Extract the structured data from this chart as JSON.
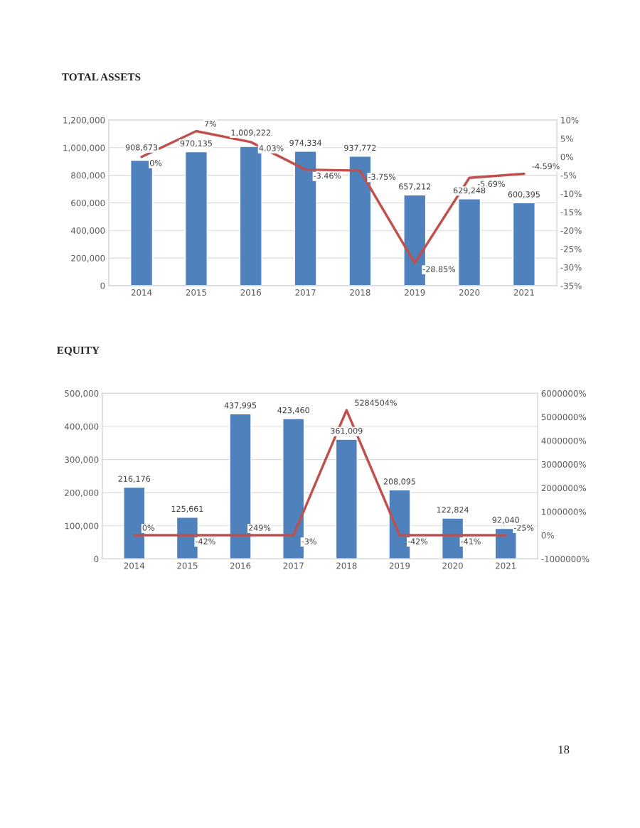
{
  "chart_data": [
    {
      "type": "bar",
      "title": "TOTAL ASSETS",
      "categories": [
        "2014",
        "2015",
        "2016",
        "2017",
        "2018",
        "2019",
        "2020",
        "2021"
      ],
      "series": [
        {
          "color": "#4f81bd",
          "values": [
            908673,
            970135,
            1009222,
            974334,
            937772,
            657212,
            629248,
            600395
          ],
          "value_labels": [
            "908,673",
            "970,135",
            "1,009,222",
            "974,334",
            "937,772",
            "657,212",
            "629,248",
            "600,395"
          ]
        },
        {
          "type": "line",
          "axis": "y2",
          "color": "#c0504d",
          "values": [
            0,
            7,
            4.03,
            -3.46,
            -3.75,
            -28.85,
            -5.69,
            -4.59
          ],
          "value_labels": [
            "0%",
            "7%",
            "4.03%",
            "-3.46%",
            "-3.75%",
            "-28.85%",
            "-5.69%",
            "-4.59%"
          ]
        }
      ],
      "ylim": [
        0,
        1200000
      ],
      "yticks": [
        0,
        {
          "value": 200000,
          "label": "200,000"
        },
        {
          "value": 400000,
          "label": "400,000"
        },
        {
          "value": 600000,
          "label": "600,000"
        },
        {
          "value": 800000,
          "label": "800,000"
        },
        {
          "value": 1000000,
          "label": "1,000,000"
        },
        {
          "value": 1200000,
          "label": "1,200,000"
        }
      ],
      "y2lim": [
        -35,
        10
      ],
      "y2ticks": [
        {
          "value": -35,
          "label": "-35%"
        },
        {
          "value": -30,
          "label": "-30%"
        },
        {
          "value": -25,
          "label": "-25%"
        },
        {
          "value": -20,
          "label": "-20%"
        },
        {
          "value": -15,
          "label": "-15%"
        },
        {
          "value": -10,
          "label": "-10%"
        },
        {
          "value": -5,
          "label": "-5%"
        },
        {
          "value": 0,
          "label": "0%"
        },
        {
          "value": 5,
          "label": "5%"
        },
        {
          "value": 10,
          "label": "10%"
        }
      ],
      "grid": "y"
    },
    {
      "type": "bar",
      "title": "EQUITY",
      "categories": [
        "2014",
        "2015",
        "2016",
        "2017",
        "2018",
        "2019",
        "2020",
        "2021"
      ],
      "series": [
        {
          "color": "#4f81bd",
          "values": [
            216176,
            125661,
            437995,
            423460,
            361009,
            208095,
            122824,
            92040
          ],
          "value_labels": [
            "216,176",
            "125,661",
            "437,995",
            "423,460",
            "361,009",
            "208,095",
            "122,824",
            "92,040"
          ]
        },
        {
          "type": "line",
          "axis": "y2",
          "color": "#c0504d",
          "values": [
            0,
            -42,
            249,
            -3,
            5284504,
            -42,
            -41,
            -25
          ],
          "value_labels": [
            "0%",
            "-42%",
            "249%",
            "-3%",
            "5284504%",
            "-42%",
            "-41%",
            "-25%"
          ]
        }
      ],
      "ylim": [
        0,
        500000
      ],
      "yticks": [
        0,
        {
          "value": 100000,
          "label": "100,000"
        },
        {
          "value": 200000,
          "label": "200,000"
        },
        {
          "value": 300000,
          "label": "300,000"
        },
        {
          "value": 400000,
          "label": "400,000"
        },
        {
          "value": 500000,
          "label": "500,000"
        }
      ],
      "y2lim": [
        -1000000,
        6000000
      ],
      "y2ticks": [
        {
          "value": -1000000,
          "label": "-1000000%"
        },
        {
          "value": 0,
          "label": "0%"
        },
        {
          "value": 1000000,
          "label": "1000000%"
        },
        {
          "value": 2000000,
          "label": "2000000%"
        },
        {
          "value": 3000000,
          "label": "3000000%"
        },
        {
          "value": 4000000,
          "label": "4000000%"
        },
        {
          "value": 5000000,
          "label": "5000000%"
        },
        {
          "value": 6000000,
          "label": "6000000%"
        }
      ],
      "grid": "y",
      "annotations": [
        "18"
      ]
    }
  ]
}
